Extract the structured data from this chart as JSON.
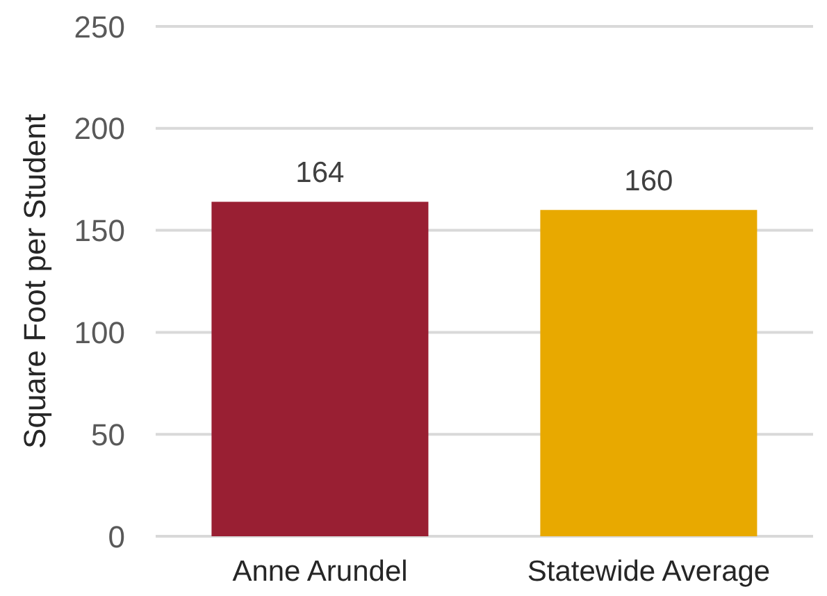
{
  "chart_data": {
    "type": "bar",
    "ylabel": "Square Foot per Student",
    "categories": [
      "Anne Arundel",
      "Statewide Average"
    ],
    "values": [
      164,
      160
    ],
    "colors": [
      "#991f33",
      "#e8a900"
    ],
    "ylim": [
      0,
      250
    ],
    "yticks": [
      0,
      50,
      100,
      150,
      200,
      250
    ],
    "grid": "y",
    "data_labels": true
  }
}
